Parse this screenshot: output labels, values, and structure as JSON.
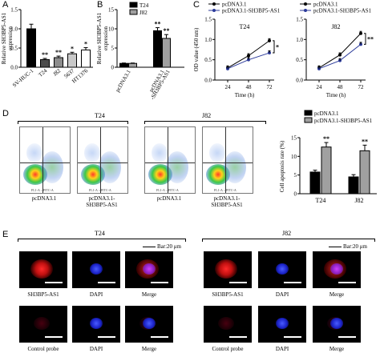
{
  "panels": {
    "A": "A",
    "B": "B",
    "C": "C",
    "D": "D",
    "E": "E"
  },
  "colors": {
    "black_bar": "#000000",
    "dark_gray": "#4d4d4d",
    "mid_gray": "#8c8c8c",
    "light_gray": "#c8c8c8",
    "white_bar": "#ffffff",
    "blue": "#2b3a9a"
  },
  "chart_data": [
    {
      "panel": "A",
      "type": "bar",
      "ylabel": "Relative SH3BP5-AS1\nexpression",
      "ylim": [
        0,
        1.5
      ],
      "yticks": [
        "0.0",
        "0.5",
        "1.0",
        "1.5"
      ],
      "categories": [
        "SV-HUC-1",
        "T24",
        "J82",
        "5637",
        "HT1376"
      ],
      "values": [
        1.0,
        0.2,
        0.25,
        0.35,
        0.45
      ],
      "errors": [
        0.12,
        0.03,
        0.04,
        0.04,
        0.06
      ],
      "significance": [
        "",
        "**",
        "**",
        "*",
        "*"
      ],
      "fills": [
        "#000000",
        "#4d4d4d",
        "#8c8c8c",
        "#c8c8c8",
        "#ffffff"
      ]
    },
    {
      "panel": "B",
      "type": "bar",
      "ylabel": "Relative SH3BP5-AS1\nexpression",
      "ylim": [
        0,
        15
      ],
      "yticks": [
        "0",
        "5",
        "10",
        "15"
      ],
      "categories": [
        "pcDNA3.1",
        "pcDNA3.1\n-SH3BP5-AS1"
      ],
      "series": [
        {
          "name": "T24",
          "values": [
            1.0,
            9.5
          ],
          "errors": [
            0.1,
            0.8
          ],
          "color": "#000000"
        },
        {
          "name": "J82",
          "values": [
            1.0,
            7.5
          ],
          "errors": [
            0.1,
            1.0
          ],
          "color": "#a0a0a0"
        }
      ],
      "significance": [
        "",
        "**",
        "**"
      ]
    },
    {
      "panel": "C",
      "type": "line",
      "title": "T24",
      "xlabel": "Time (h)",
      "ylabel": "OD value (450 nm)",
      "x": [
        "24",
        "48",
        "72"
      ],
      "ylim": [
        0.0,
        1.5
      ],
      "yticks": [
        "0.0",
        "0.5",
        "1.0",
        "1.5"
      ],
      "legend": [
        "pcDNA3.1",
        "pcDNA3.1-SH3BP5-AS1"
      ],
      "series": [
        {
          "name": "pcDNA3.1",
          "values": [
            0.3,
            0.6,
            0.97
          ],
          "color": "#000000"
        },
        {
          "name": "pcDNA3.1-SH3BP5-AS1",
          "values": [
            0.28,
            0.5,
            0.67
          ],
          "color": "#2b3a9a"
        }
      ],
      "significance": "*"
    },
    {
      "panel": "C",
      "type": "line",
      "title": "J82",
      "xlabel": "Time (h)",
      "x": [
        "24",
        "48",
        "72"
      ],
      "ylim": [
        0.0,
        1.5
      ],
      "yticks": [
        "0.0",
        "0.5",
        "1.0",
        "1.5"
      ],
      "legend": [
        "pcDNA3.1",
        "pcDNA3.1-SH3BP5-AS1"
      ],
      "series": [
        {
          "name": "pcDNA3.1",
          "values": [
            0.3,
            0.62,
            1.15
          ],
          "color": "#000000"
        },
        {
          "name": "pcDNA3.1-SH3BP5-AS1",
          "values": [
            0.28,
            0.48,
            0.88
          ],
          "color": "#2b3a9a"
        }
      ],
      "significance": "**"
    },
    {
      "panel": "D",
      "type": "bar",
      "ylabel": "Cell apoptosis rate (%)",
      "ylim": [
        0,
        15
      ],
      "yticks": [
        "0",
        "5",
        "10",
        "15"
      ],
      "categories": [
        "T24",
        "J82"
      ],
      "legend": [
        "pcDNA3.1",
        "pcDNA3.1-SH3BP5-AS1"
      ],
      "series": [
        {
          "name": "pcDNA3.1",
          "values": [
            5.8,
            4.5
          ],
          "errors": [
            0.5,
            0.6
          ],
          "color": "#000000"
        },
        {
          "name": "pcDNA3.1-SH3BP5-AS1",
          "values": [
            12.5,
            11.5
          ],
          "errors": [
            1.2,
            1.5
          ],
          "color": "#a0a0a0"
        }
      ],
      "significance": [
        "**",
        "**"
      ]
    }
  ],
  "flow": {
    "groups": [
      "T24",
      "J82"
    ],
    "axis_y": "PE-A :: PI-A",
    "axis_x": "FL1-A :: FITC-A",
    "captions": [
      "pcDNA3.1",
      "pcDNA3.1-\nSH3BP5-AS1",
      "pcDNA3.1",
      "pcDNA3.1-\nSH3BP5-AS1"
    ]
  },
  "micro": {
    "groups": [
      "T24",
      "J82"
    ],
    "scalebar": "Bar:20 μm",
    "row1_labels": [
      "SH3BP5-AS1",
      "DAPI",
      "Merge"
    ],
    "row2_labels": [
      "Control probe",
      "DAPI",
      "Merge"
    ]
  }
}
